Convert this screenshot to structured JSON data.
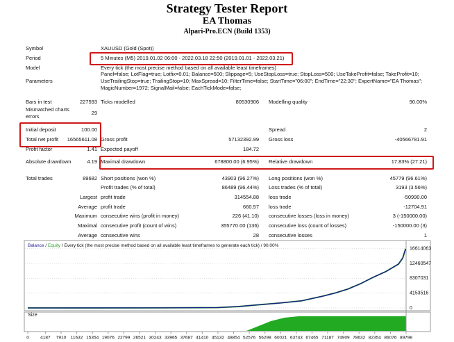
{
  "header": {
    "title": "Strategy Tester Report",
    "subtitle": "EA Thomas",
    "server": "Alpari-Pro.ECN (Build 1353)"
  },
  "rows": [
    {
      "label": "Symbol",
      "value": "XAUUSD (Gold (Spot))"
    },
    {
      "label": "Period",
      "value": "5 Minutes (M5) 2019.01.02 06:00 - 2022.03.18 22:50 (2019.01.01 - 2022.03.21)"
    },
    {
      "label": "Model",
      "value": "Every tick (the most precise method based on all available least timeframes)"
    },
    {
      "label": "Parameters",
      "value": "Panel=false; LotFlag=true; Lotfix=0.01; Balance=500; Slippage=5; UseStopLoss=true; StopLoss=500; UseTakeProfit=false; TakeProfit=10; UseTrailingStop=true; TrailingStop=10; MaxSpread=10; FilterTime=false; StartTime=\"06:00\"; EndTime=\"22:30\"; ExpertName=\"EA Thomas\"; MagicNumber=1972; SignalMail=false; EachTickMode=false;"
    },
    {
      "label": "Bars in test",
      "value": "227593",
      "label2": "Ticks modelled",
      "value2": "80530906",
      "label3": "Modelling quality",
      "value3": "90.00%"
    },
    {
      "label": "Mismatched charts errors",
      "value": "29"
    },
    {
      "label": "Initial deposit",
      "value": "100.00",
      "label3": "Spread",
      "value3": "2"
    },
    {
      "label": "Total net profit",
      "value": "16565611.08",
      "label2": "Gross profit",
      "value2": "57132392.99",
      "label3": "Gross loss",
      "value3": "-40566781.91"
    },
    {
      "label": "Profit factor",
      "value": "1.41",
      "label2": "Expected payoff",
      "value2": "184.72"
    },
    {
      "label": "Absolute drawdown",
      "value": "4.19",
      "label2": "Maximal drawdown",
      "value2": "678800.00 (6.95%)",
      "label3": "Relative drawdown",
      "value3": "17.83% (27.21)"
    },
    {
      "label": "Total trades",
      "value": "89682",
      "label2": "Short positions (won %)",
      "value2": "43903 (96.27%)",
      "label3": "Long positions (won %)",
      "value3": "45779 (96.61%)"
    },
    {
      "label2": "Profit trades (% of total)",
      "value2": "86489 (96.44%)",
      "label3": "Loss trades (% of total)",
      "value3": "3193 (3.56%)"
    },
    {
      "label": "Largest",
      "label2": "profit trade",
      "value2": "314554.88",
      "label3": "loss trade",
      "value3": "-50990.00"
    },
    {
      "label": "Average",
      "label2": "profit trade",
      "value2": "660.57",
      "label3": "loss trade",
      "value3": "-12704.91"
    },
    {
      "label": "Maximum",
      "label2": "consecutive wins (profit in money)",
      "value2": "226 (41.10)",
      "label3": "consecutive losses (loss in money)",
      "value3": "3 (-150000.00)"
    },
    {
      "label": "Maximal",
      "label2": "consecutive profit (count of wins)",
      "value2": "355770.00 (136)",
      "label3": "consecutive loss (count of losses)",
      "value3": "-150000.00 (3)"
    },
    {
      "label": "Average",
      "label2": "consecutive wins",
      "value2": "28",
      "label3": "consecutive losses",
      "value3": "1"
    }
  ],
  "chart_data": {
    "type": "line",
    "legend_separator": "/",
    "legend_note": "Every tick (the most precise method based on all available least timeframes to generate each tick)",
    "legend_quality": "90.00%",
    "size_label": "Size",
    "x": [
      0,
      30000,
      45000,
      50000,
      55000,
      60000,
      65000,
      70000,
      73000,
      76000,
      79000,
      82000,
      85000,
      88000,
      89000,
      89682
    ],
    "series": [
      {
        "name": "Balance",
        "color": "#1c1c8c",
        "values": [
          100,
          20000,
          100000,
          400000,
          900000,
          1400000,
          2000000,
          3300000,
          4200000,
          5300000,
          6800000,
          8600000,
          10200000,
          12300000,
          14000000,
          16565611
        ]
      },
      {
        "name": "Equity",
        "color": "#2ca02c",
        "values": [
          100,
          20000,
          100000,
          400000,
          900000,
          1400000,
          2000000,
          3300000,
          4200000,
          5300000,
          6800000,
          8600000,
          10200000,
          12300000,
          14000000,
          16565611
        ]
      }
    ],
    "xlim": [
      0,
      89798
    ],
    "ylim": [
      0,
      18700000
    ],
    "yticks": [
      0,
      4153516,
      8307031,
      12460547,
      16614063
    ],
    "xticks": [
      0,
      4187,
      7910,
      11632,
      15354,
      19076,
      22799,
      26521,
      30243,
      33965,
      37687,
      41410,
      45132,
      48854,
      52576,
      56298,
      60021,
      63743,
      67465,
      71187,
      74909,
      78632,
      82354,
      86076,
      89798
    ]
  }
}
